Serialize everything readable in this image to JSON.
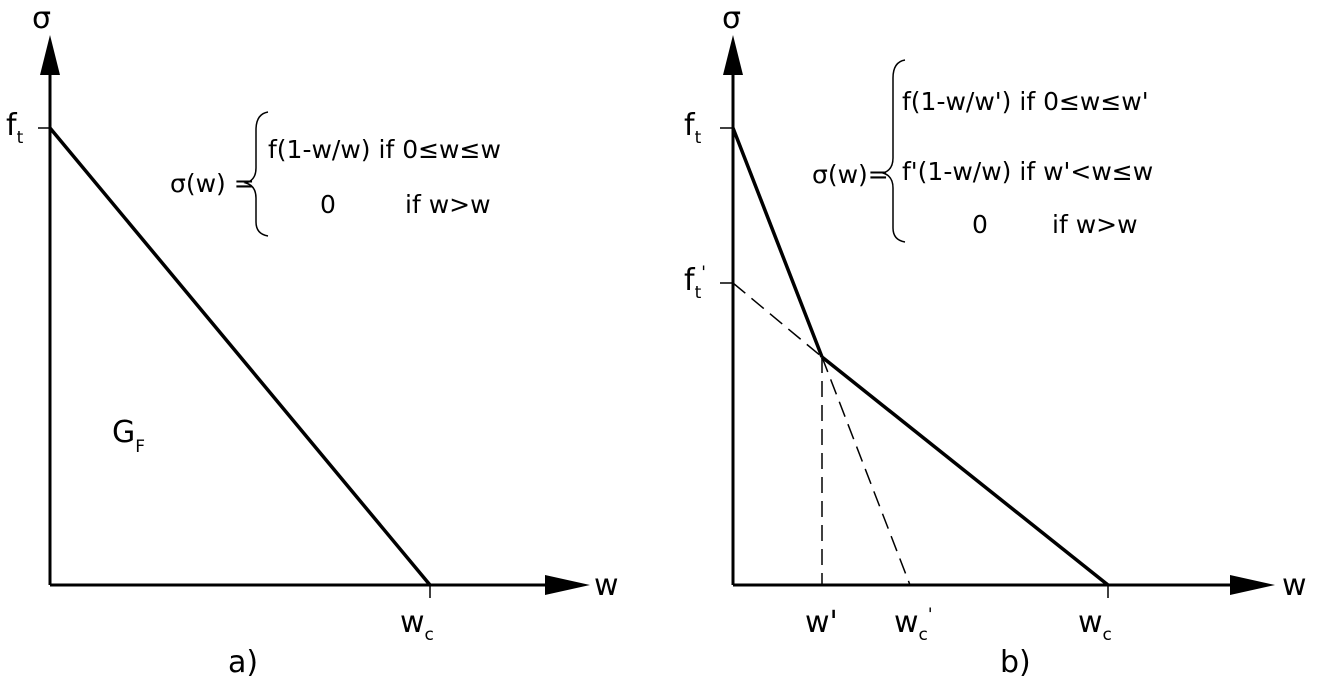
{
  "panel_a": {
    "caption": "a)",
    "y_axis_label": "σ",
    "x_axis_label": "w",
    "ft_base": "f",
    "ft_sub": "t",
    "wc_base": "w",
    "wc_sub": "c",
    "area_base": "G",
    "area_sub": "F",
    "equation": {
      "lhs": "σ(w) =",
      "line1": "f(1-w/w) if 0≤w≤w",
      "line2_value": "0",
      "line2_cond": "if w>w"
    }
  },
  "panel_b": {
    "caption": "b)",
    "y_axis_label": "σ",
    "x_axis_label": "w",
    "ft_base": "f",
    "ft_sub": "t",
    "ftp_base": "f",
    "ftp_sub": "t",
    "ftp_prime": "'",
    "wp_label": "w'",
    "wcp_base": "w",
    "wcp_sub": "c",
    "wcp_prime": "'",
    "wc_base": "w",
    "wc_sub": "c",
    "equation": {
      "lhs": "σ(w)=",
      "line1": "f(1-w/w') if 0≤w≤w'",
      "line2": "f'(1-w/w) if w'<w≤w",
      "line3_value": "0",
      "line3_cond": "if w>w"
    }
  }
}
